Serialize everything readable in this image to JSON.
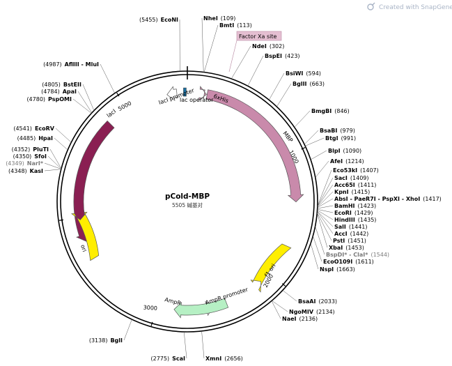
{
  "watermark": {
    "text": "Created with SnapGene®",
    "icon": "snapgene-logo-icon"
  },
  "plasmid": {
    "name": "pCold-MBP",
    "length_label": "5505 碱基对",
    "total_bp": 5505
  },
  "ticks": [
    {
      "pos": 1000,
      "label": "1000"
    },
    {
      "pos": 2000,
      "label": "2000"
    },
    {
      "pos": 3000,
      "label": "3000"
    },
    {
      "pos": 4000,
      "label": "4000"
    },
    {
      "pos": 5000,
      "label": "5000"
    }
  ],
  "features": [
    {
      "id": "lacI",
      "label": "lacI",
      "start": 4820,
      "end": 3800,
      "color": "#8a1f52"
    },
    {
      "id": "lacI_promoter",
      "label": "lacI promoter",
      "start": 5420,
      "end": 5340,
      "color": "#ffffff"
    },
    {
      "id": "lac_operator",
      "label": "lac operator",
      "start": 5490,
      "end": 5480,
      "color": "#1c6fa0"
    },
    {
      "id": "sixxhis",
      "label": "6xHis",
      "start": 137,
      "end": 155,
      "color": "#d09ab3"
    },
    {
      "id": "MBP",
      "label": "MBP",
      "start": 160,
      "end": 1380,
      "color": "#c98aab"
    },
    {
      "id": "f1_ori",
      "label": "f1 ori",
      "start": 1745,
      "end": 2100,
      "color": "#ffee00"
    },
    {
      "id": "AmpR_promoter",
      "label": "AmpR promoter",
      "start": 2440,
      "end": 2540,
      "color": "#ffffff"
    },
    {
      "id": "AmpR",
      "label": "AmpR",
      "start": 2430,
      "end": 2860,
      "color": "#b6f0c4"
    },
    {
      "id": "ori",
      "label": "ori",
      "start": 3650,
      "end": 3980,
      "color": "#ffee00"
    }
  ],
  "factor_xa": {
    "label": "Factor Xa site",
    "color": "#e5bfd2"
  },
  "sites": [
    {
      "name": "NheI",
      "pos": "(109)"
    },
    {
      "name": "BmtI",
      "pos": "(113)"
    },
    {
      "name": "NdeI",
      "pos": "(302)"
    },
    {
      "name": "BspEI",
      "pos": "(423)"
    },
    {
      "name": "BsiWI",
      "pos": "(594)"
    },
    {
      "name": "BglII",
      "pos": "(663)"
    },
    {
      "name": "BmgBI",
      "pos": "(846)"
    },
    {
      "name": "BsaBI",
      "pos": "(979)"
    },
    {
      "name": "BtgI",
      "pos": "(991)"
    },
    {
      "name": "BlpI",
      "pos": "(1090)"
    },
    {
      "name": "AfeI",
      "pos": "(1214)"
    },
    {
      "name": "Eco53kI",
      "pos": "(1407)"
    },
    {
      "name": "SacI",
      "pos": "(1409)"
    },
    {
      "name": "Acc65I",
      "pos": "(1411)"
    },
    {
      "name": "KpnI",
      "pos": "(1415)"
    },
    {
      "name": "AbsI - PaeR7I - PspXI - XhoI",
      "pos": "(1417)"
    },
    {
      "name": "BamHI",
      "pos": "(1423)"
    },
    {
      "name": "EcoRI",
      "pos": "(1429)"
    },
    {
      "name": "HindIII",
      "pos": "(1435)"
    },
    {
      "name": "SalI",
      "pos": "(1441)"
    },
    {
      "name": "AccI",
      "pos": "(1442)"
    },
    {
      "name": "PstI",
      "pos": "(1451)"
    },
    {
      "name": "XbaI",
      "pos": "(1453)"
    },
    {
      "name": "BspDI* - ClaI*",
      "pos": "(1544)",
      "grey": true
    },
    {
      "name": "EcoO109I",
      "pos": "(1611)"
    },
    {
      "name": "NspI",
      "pos": "(1663)"
    },
    {
      "name": "BsaAI",
      "pos": "(2033)"
    },
    {
      "name": "NgoMIV",
      "pos": "(2134)"
    },
    {
      "name": "NaeI",
      "pos": "(2136)"
    },
    {
      "name": "XmnI",
      "pos": "(2656)"
    },
    {
      "name": "ScaI",
      "pos": "(2775)"
    },
    {
      "name": "BglI",
      "pos": "(3138)"
    },
    {
      "name": "KasI",
      "pos": "(4348)"
    },
    {
      "name": "NarI*",
      "pos": "(4349)",
      "grey": true
    },
    {
      "name": "SfoI",
      "pos": "(4350)"
    },
    {
      "name": "PluTI",
      "pos": "(4352)"
    },
    {
      "name": "HpaI",
      "pos": "(4485)"
    },
    {
      "name": "EcoRV",
      "pos": "(4541)"
    },
    {
      "name": "PspOMI",
      "pos": "(4780)"
    },
    {
      "name": "ApaI",
      "pos": "(4784)"
    },
    {
      "name": "BstEII",
      "pos": "(4805)"
    },
    {
      "name": "AflIII - MluI",
      "pos": "(4987)"
    },
    {
      "name": "EcoNI",
      "pos": "(5455)"
    }
  ]
}
